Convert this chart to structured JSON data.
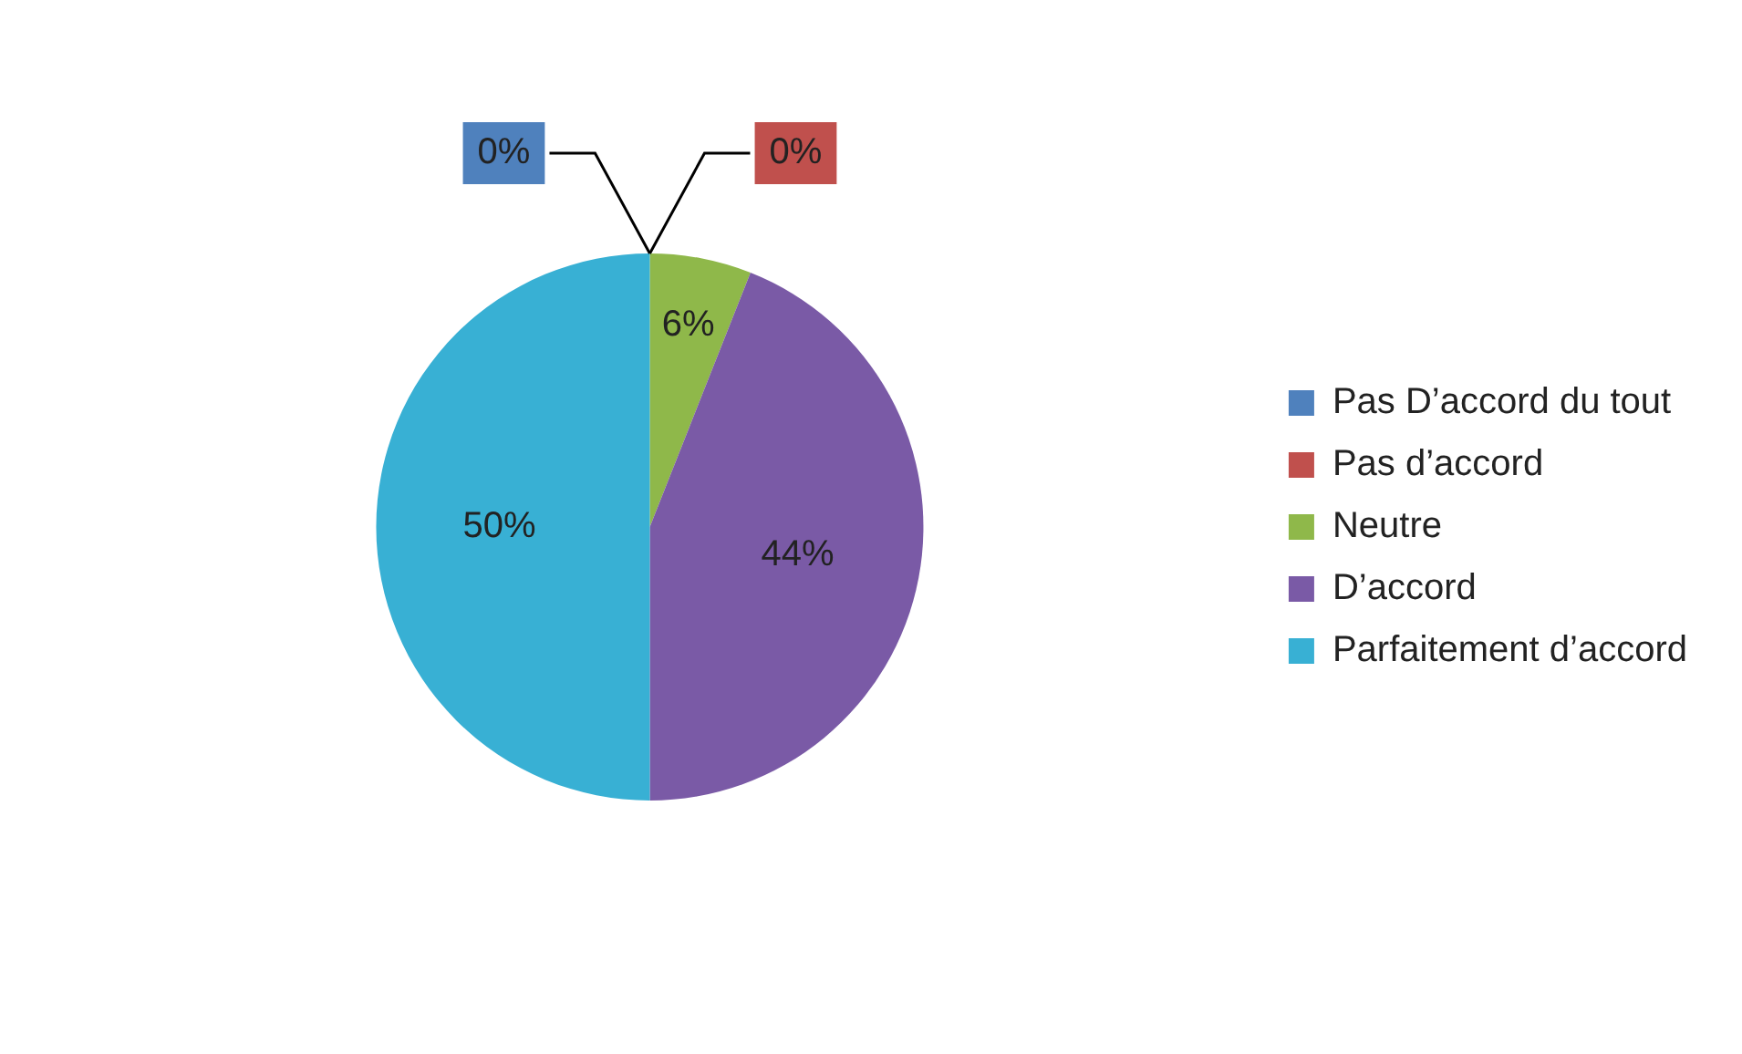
{
  "chart_data": {
    "type": "pie",
    "categories": [
      "Pas D’accord du tout",
      "Pas d’accord",
      "Neutre",
      "D’accord",
      "Parfaitement d’accord"
    ],
    "values": [
      0,
      0,
      6,
      44,
      50
    ],
    "value_labels": [
      "0%",
      "0%",
      "6%",
      "44%",
      "50%"
    ],
    "colors": [
      "#4f81bd",
      "#c0504d",
      "#8fb84a",
      "#7a5aa6",
      "#38b0d4"
    ],
    "legend": "right"
  }
}
